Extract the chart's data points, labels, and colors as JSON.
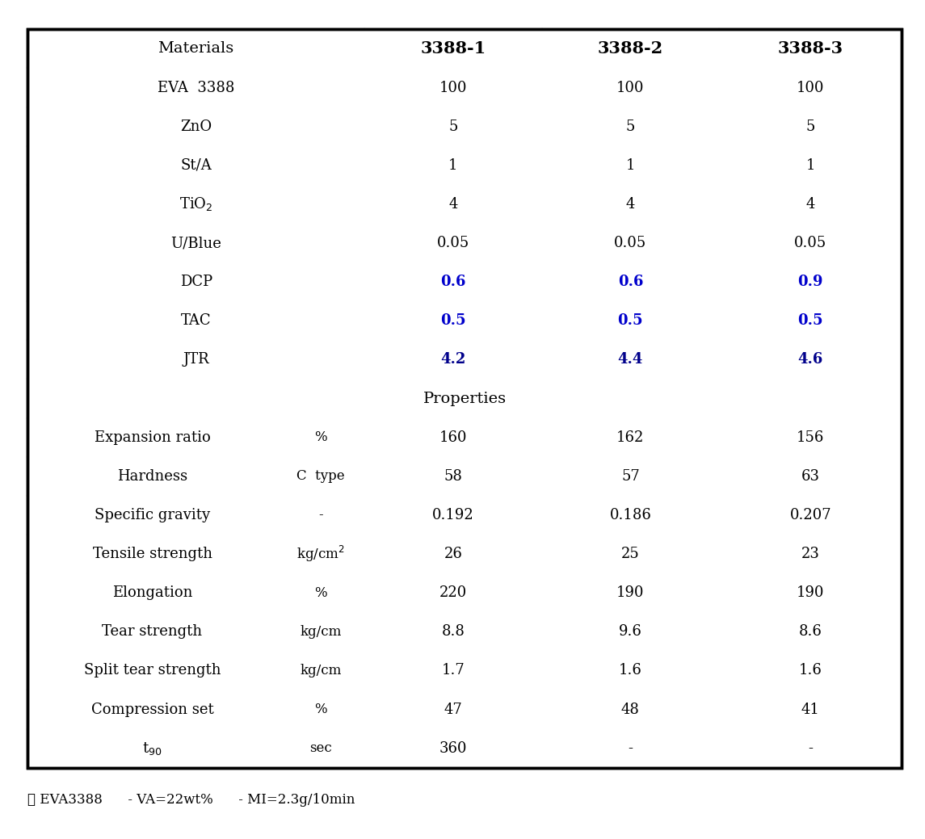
{
  "header_bg": "#e8e8e8",
  "properties_bg": "#ebebeb",
  "white_bg": "#ffffff",
  "border_color": "#000000",
  "dashed_color": "#999999",
  "black_text": "#000000",
  "blue_text": "#0000cc",
  "dark_blue_text": "#00008B",
  "header_row": [
    "Materials",
    "3388-1",
    "3388-2",
    "3388-3"
  ],
  "formulation_rows": [
    {
      "label": "EVA  3388",
      "unit": null,
      "vals": [
        "100",
        "100",
        "100"
      ],
      "color": "black"
    },
    {
      "label": "ZnO",
      "unit": null,
      "vals": [
        "5",
        "5",
        "5"
      ],
      "color": "black"
    },
    {
      "label": "St/A",
      "unit": null,
      "vals": [
        "1",
        "1",
        "1"
      ],
      "color": "black"
    },
    {
      "label": "TiO$_2$",
      "unit": null,
      "vals": [
        "4",
        "4",
        "4"
      ],
      "color": "black"
    },
    {
      "label": "U/Blue",
      "unit": null,
      "vals": [
        "0.05",
        "0.05",
        "0.05"
      ],
      "color": "black"
    },
    {
      "label": "DCP",
      "unit": null,
      "vals": [
        "0.6",
        "0.6",
        "0.9"
      ],
      "color": "blue"
    },
    {
      "label": "TAC",
      "unit": null,
      "vals": [
        "0.5",
        "0.5",
        "0.5"
      ],
      "color": "blue"
    },
    {
      "label": "JTR",
      "unit": null,
      "vals": [
        "4.2",
        "4.4",
        "4.6"
      ],
      "color": "darkblue"
    }
  ],
  "properties_header": "Properties",
  "properties_rows": [
    {
      "label": "Expansion ratio",
      "unit": "%",
      "vals": [
        "160",
        "162",
        "156"
      ],
      "color": "black"
    },
    {
      "label": "Hardness",
      "unit": "C  type",
      "vals": [
        "58",
        "57",
        "63"
      ],
      "color": "black"
    },
    {
      "label": "Specific gravity",
      "unit": "-",
      "vals": [
        "0.192",
        "0.186",
        "0.207"
      ],
      "color": "black"
    },
    {
      "label": "Tensile strength",
      "unit": "kg/cm$^2$",
      "vals": [
        "26",
        "25",
        "23"
      ],
      "color": "black"
    },
    {
      "label": "Elongation",
      "unit": "%",
      "vals": [
        "220",
        "190",
        "190"
      ],
      "color": "black"
    },
    {
      "label": "Tear strength",
      "unit": "kg/cm",
      "vals": [
        "8.8",
        "9.6",
        "8.6"
      ],
      "color": "black"
    },
    {
      "label": "Split tear strength",
      "unit": "kg/cm",
      "vals": [
        "1.7",
        "1.6",
        "1.6"
      ],
      "color": "black"
    },
    {
      "label": "Compression set",
      "unit": "%",
      "vals": [
        "47",
        "48",
        "41"
      ],
      "color": "black"
    },
    {
      "label": "t$_{90}$",
      "unit": "sec",
      "vals": [
        "360",
        "-",
        "-"
      ],
      "color": "black"
    }
  ],
  "footnote": "☆ EVA3388      - VA=22wt%      - MI=2.3g/10min",
  "figsize": [
    11.45,
    10.39
  ],
  "dpi": 100
}
